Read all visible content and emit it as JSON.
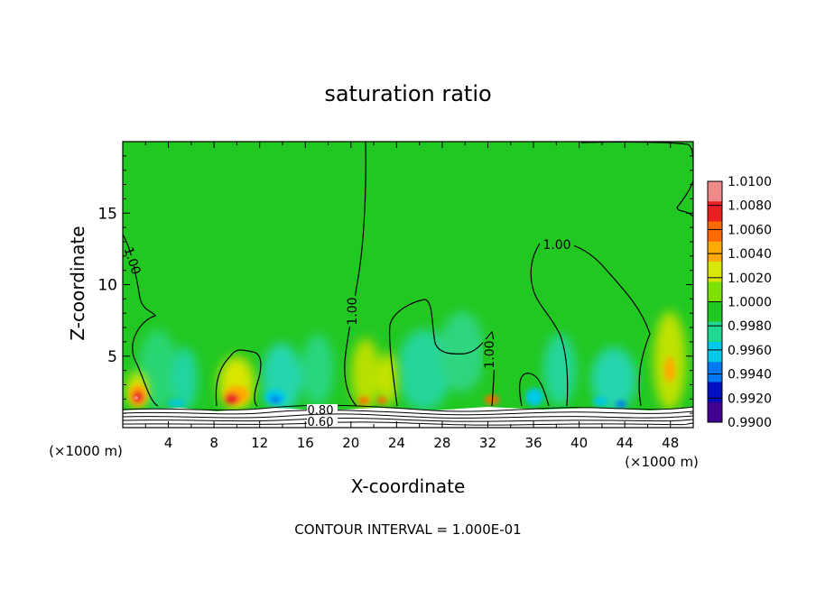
{
  "chart_data": {
    "type": "heatmap",
    "title": "saturation ratio",
    "xlabel": "X-coordinate",
    "ylabel": "Z-coordinate",
    "x_unit_left": "(×1000 m)",
    "x_unit_right": "(×1000 m)",
    "footer": "CONTOUR INTERVAL = 1.000E-01",
    "xlim": [
      0,
      50
    ],
    "ylim": [
      0,
      20
    ],
    "x_ticks": [
      "4",
      "8",
      "12",
      "16",
      "20",
      "24",
      "28",
      "32",
      "36",
      "40",
      "44",
      "48"
    ],
    "y_ticks": [
      "5",
      "10",
      "15"
    ],
    "colorbar": {
      "labels": [
        "1.0100",
        "1.0080",
        "1.0060",
        "1.0040",
        "1.0020",
        "1.0000",
        "0.9980",
        "0.9960",
        "0.9940",
        "0.9920",
        "0.9900"
      ],
      "colors": [
        "#f08a8a",
        "#e82020",
        "#ff6a00",
        "#ffaa00",
        "#d8e600",
        "#7ce000",
        "#22c822",
        "#20d890",
        "#00c8e8",
        "#0078f0",
        "#0010c0",
        "#400090"
      ]
    },
    "background_value": 1.0,
    "contour_labels": [
      {
        "text": "1.00",
        "x": 1.5,
        "z": 11.5
      },
      {
        "text": "1.00",
        "x": 20.5,
        "z": 8.0
      },
      {
        "text": "1.00",
        "x": 32.5,
        "z": 5.0
      },
      {
        "text": "1.00",
        "x": 39.5,
        "z": 12.6
      },
      {
        "text": "0.80",
        "x": 17.5,
        "z": 1.1
      },
      {
        "text": "0.60",
        "x": 17.5,
        "z": 0.5
      }
    ],
    "features": [
      {
        "x": 1.5,
        "z": 2.0,
        "value": 1.008
      },
      {
        "x": 9.5,
        "z": 2.5,
        "value": 1.006
      },
      {
        "x": 13.5,
        "z": 2.0,
        "value": 0.994
      },
      {
        "x": 21.0,
        "z": 2.5,
        "value": 1.004
      },
      {
        "x": 33.0,
        "z": 2.0,
        "value": 1.004
      },
      {
        "x": 36.0,
        "z": 2.0,
        "value": 0.996
      },
      {
        "x": 47.5,
        "z": 3.5,
        "value": 1.004
      }
    ]
  }
}
